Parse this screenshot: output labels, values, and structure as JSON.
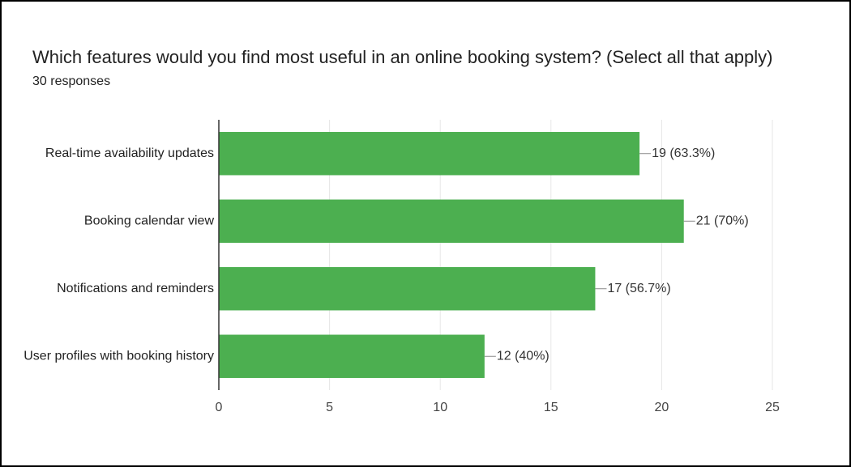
{
  "chart_data": {
    "type": "bar",
    "orientation": "horizontal",
    "title": "Which features would you find most useful in an online booking system? (Select all that apply)",
    "subtitle": "30 responses",
    "categories": [
      "Real-time availability updates",
      "Booking calendar view",
      "Notifications and reminders",
      "User profiles with booking history"
    ],
    "values": [
      19,
      21,
      17,
      12
    ],
    "value_labels": [
      "19 (63.3%)",
      "21 (70%)",
      "17 (56.7%)",
      "12 (40%)"
    ],
    "color": "#4caf50",
    "xlim": [
      0,
      25
    ],
    "xticks": [
      0,
      5,
      10,
      15,
      20,
      25
    ],
    "grid": true
  }
}
